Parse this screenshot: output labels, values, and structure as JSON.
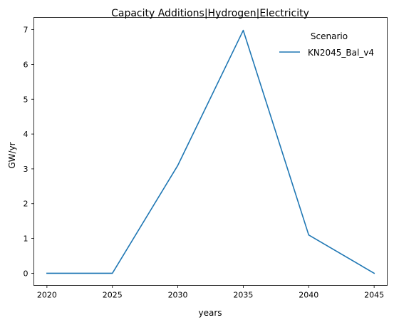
{
  "chart_data": {
    "type": "line",
    "title": "Capacity Additions|Hydrogen|Electricity",
    "xlabel": "years",
    "ylabel": "GW/yr",
    "x": [
      2020,
      2025,
      2030,
      2035,
      2040,
      2045
    ],
    "xlim": [
      2019.0,
      2046.0
    ],
    "ylim": [
      -0.35,
      7.35
    ],
    "xticks": [
      2020,
      2025,
      2030,
      2035,
      2040,
      2045
    ],
    "yticks": [
      0,
      1,
      2,
      3,
      4,
      5,
      6,
      7
    ],
    "grid": false,
    "legend": {
      "title": "Scenario",
      "placement": "top-right"
    },
    "series": [
      {
        "name": "KN2045_Bal_v4",
        "color": "#1f77b4",
        "values": [
          0.0,
          0.0,
          3.1,
          6.98,
          1.1,
          0.0
        ]
      }
    ]
  }
}
